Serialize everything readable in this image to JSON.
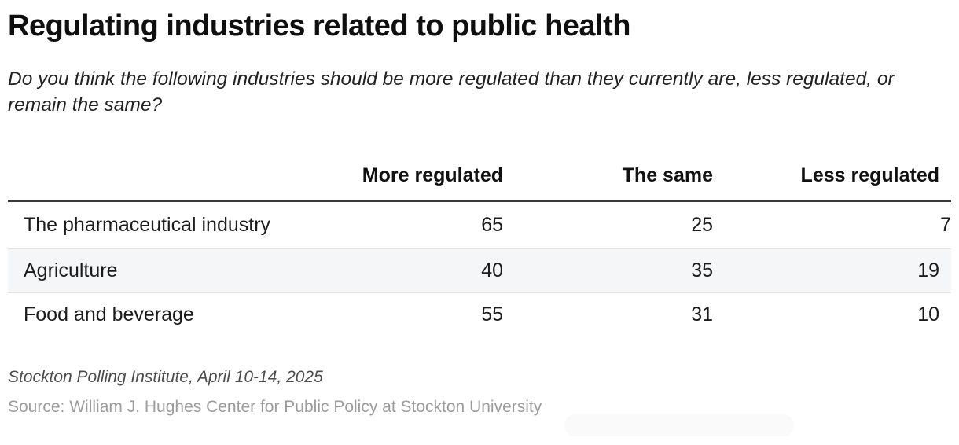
{
  "title": "Regulating industries related to public health",
  "subtitle": "Do you think the following industries should be more regulated than they currently are, less regulated, or remain the same?",
  "table": {
    "columns": [
      "",
      "More regulated",
      "The same",
      "Less regulated"
    ],
    "rows": [
      {
        "label": "The pharmaceutical industry",
        "values": [
          65,
          25,
          7
        ]
      },
      {
        "label": "Agriculture",
        "values": [
          40,
          35,
          19
        ]
      },
      {
        "label": "Food and beverage",
        "values": [
          55,
          31,
          10
        ]
      }
    ]
  },
  "footer": {
    "note": "Stockton Polling Institute, April 10-14, 2025",
    "source": "Source: William J. Hughes Center for Public Policy at Stockton University"
  },
  "colors": {
    "title_text": "#0f0f0f",
    "body_text": "#1c1c1c",
    "header_rule": "#393939",
    "row_divider": "#e3e3e3",
    "row_stripe": "#f5f6f7",
    "note_text": "#4c4c4c",
    "source_text": "#9c9c9c",
    "background": "#ffffff"
  },
  "chart_data": {
    "type": "table",
    "title": "Regulating industries related to public health",
    "subtitle": "Do you think the following industries should be more regulated than they currently are, less regulated, or remain the same?",
    "categories": [
      "The pharmaceutical industry",
      "Agriculture",
      "Food and beverage"
    ],
    "series": [
      {
        "name": "More regulated",
        "values": [
          65,
          40,
          55
        ]
      },
      {
        "name": "The same",
        "values": [
          25,
          35,
          31
        ]
      },
      {
        "name": "Less regulated",
        "values": [
          7,
          19,
          10
        ]
      }
    ],
    "layout": {
      "value_alignment": "right",
      "striped_rows": true,
      "grid": "horizontal-dividers",
      "legend_position": "none"
    },
    "note": "Stockton Polling Institute, April 10-14, 2025",
    "source": "Source: William J. Hughes Center for Public Policy at Stockton University"
  }
}
